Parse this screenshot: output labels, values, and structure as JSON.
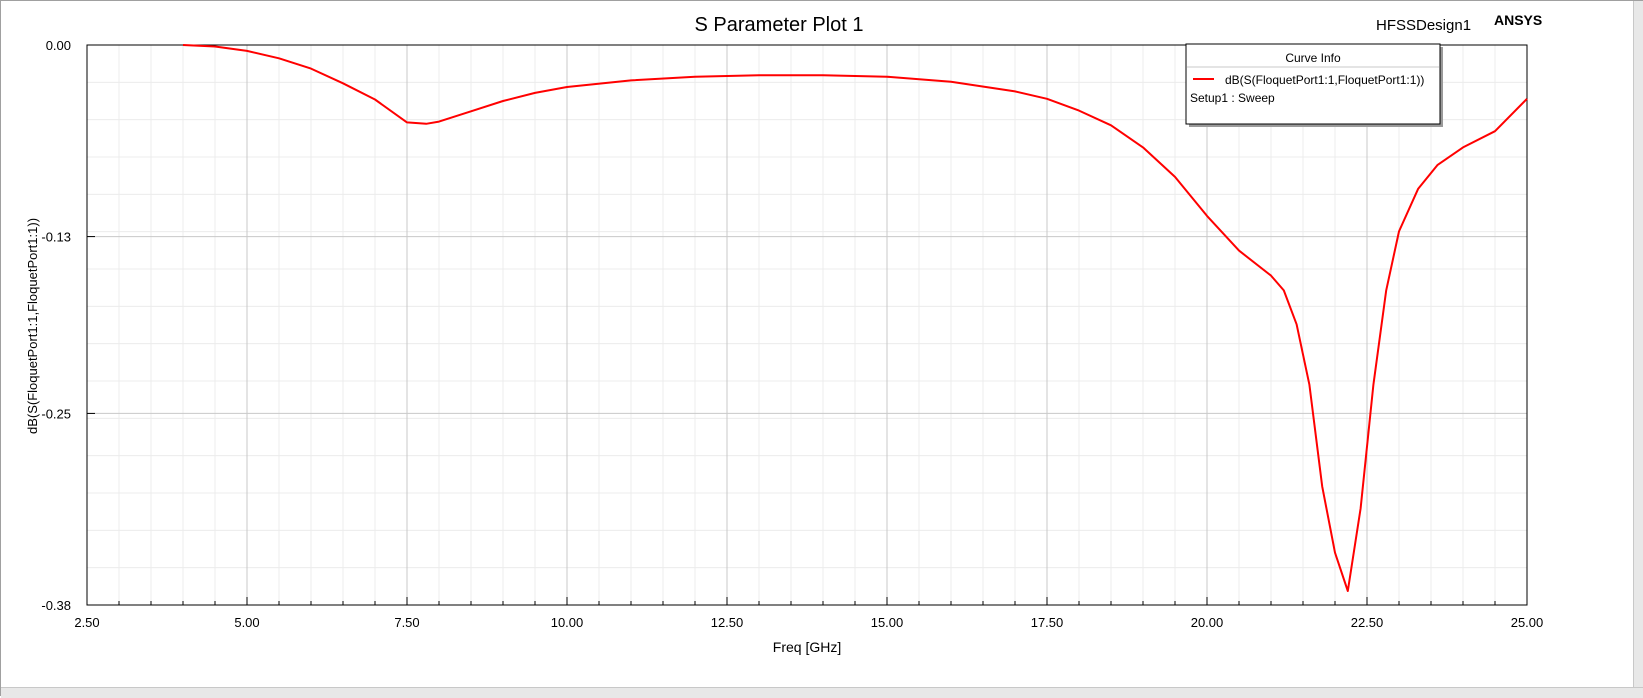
{
  "header": {
    "design_name": "HFSSDesign1",
    "brand": "ANSYS"
  },
  "chart_data": {
    "type": "line",
    "title": "S Parameter Plot 1",
    "xlabel": "Freq [GHz]",
    "ylabel": "dB(S(FloquetPort1:1,FloquetPort1:1))",
    "xlim": [
      2.5,
      25.0
    ],
    "ylim": [
      -0.38,
      0.0
    ],
    "x_ticks": [
      2.5,
      5.0,
      7.5,
      10.0,
      12.5,
      15.0,
      17.5,
      20.0,
      22.5,
      25.0
    ],
    "x_tick_labels": [
      "2.50",
      "5.00",
      "7.50",
      "10.00",
      "12.50",
      "15.00",
      "17.50",
      "20.00",
      "22.50",
      "25.00"
    ],
    "y_ticks": [
      0.0,
      -0.13,
      -0.25,
      -0.38
    ],
    "y_tick_labels": [
      "0.00",
      "-0.13",
      "-0.25",
      "-0.38"
    ],
    "grid": true,
    "legend_position": "top-right",
    "legend_title": "Curve Info",
    "series": [
      {
        "name": "dB(S(FloquetPort1:1,FloquetPort1:1))",
        "sublabel": "Setup1 : Sweep",
        "color": "#ff0000",
        "x": [
          4.0,
          4.5,
          5.0,
          5.5,
          6.0,
          6.5,
          7.0,
          7.5,
          7.8,
          8.0,
          8.5,
          9.0,
          9.5,
          10.0,
          11.0,
          12.0,
          13.0,
          14.0,
          15.0,
          16.0,
          17.0,
          17.5,
          18.0,
          18.5,
          19.0,
          19.5,
          20.0,
          20.5,
          21.0,
          21.2,
          21.4,
          21.6,
          21.8,
          22.0,
          22.2,
          22.4,
          22.6,
          22.8,
          23.0,
          23.3,
          23.6,
          24.0,
          24.5,
          25.0
        ],
        "values": [
          0.0,
          -0.001,
          -0.004,
          -0.009,
          -0.016,
          -0.026,
          -0.037,
          -0.0525,
          -0.0535,
          -0.052,
          -0.045,
          -0.038,
          -0.0325,
          -0.0285,
          -0.024,
          -0.0215,
          -0.0205,
          -0.0205,
          -0.0215,
          -0.025,
          -0.0315,
          -0.0365,
          -0.0445,
          -0.0545,
          -0.0695,
          -0.0895,
          -0.116,
          -0.1395,
          -0.1565,
          -0.1665,
          -0.1895,
          -0.2305,
          -0.2995,
          -0.3445,
          -0.3705,
          -0.3145,
          -0.2305,
          -0.1665,
          -0.1265,
          -0.0975,
          -0.0815,
          -0.0695,
          -0.0585,
          -0.0365
        ]
      }
    ]
  }
}
